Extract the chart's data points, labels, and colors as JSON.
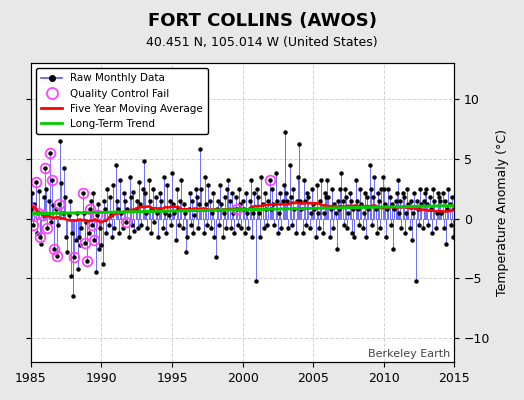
{
  "title": "FORT COLLINS (AWOS)",
  "subtitle": "40.451 N, 105.014 W (United States)",
  "ylabel": "Temperature Anomaly (°C)",
  "xlabel_credit": "Berkeley Earth",
  "xlim": [
    1985,
    2015
  ],
  "ylim": [
    -12,
    13
  ],
  "yticks": [
    -10,
    -5,
    0,
    5,
    10
  ],
  "xticks": [
    1985,
    1990,
    1995,
    2000,
    2005,
    2010,
    2015
  ],
  "bg_color": "#e8e8e8",
  "plot_bg_color": "#ffffff",
  "raw_line_color": "#5555ff",
  "raw_marker_color": "#000000",
  "qc_fail_color": "#ff44ff",
  "moving_avg_color": "#ff0000",
  "trend_color": "#00cc00",
  "start_year": 1985.0,
  "raw_data": [
    0.8,
    2.1,
    -0.5,
    1.2,
    3.1,
    -1.2,
    0.5,
    2.3,
    -1.5,
    -2.1,
    0.3,
    1.8,
    4.2,
    2.5,
    -0.8,
    1.5,
    5.5,
    -0.3,
    3.2,
    1.1,
    -2.5,
    0.8,
    -3.1,
    -0.5,
    1.2,
    6.5,
    3.0,
    0.5,
    4.2,
    1.8,
    -1.5,
    -2.8,
    0.3,
    1.5,
    -4.8,
    -1.2,
    -6.5,
    -3.2,
    -1.8,
    0.5,
    -4.2,
    -1.5,
    -2.2,
    -0.8,
    2.1,
    0.5,
    -2.0,
    -0.3,
    -3.5,
    -1.2,
    0.8,
    1.5,
    -0.5,
    2.1,
    -1.8,
    -4.5,
    0.3,
    1.2,
    -2.5,
    -0.8,
    -2.2,
    -3.8,
    1.5,
    0.8,
    -1.2,
    2.5,
    -0.5,
    1.8,
    0.3,
    -1.5,
    2.8,
    -0.8,
    4.5,
    1.5,
    0.8,
    -1.2,
    3.2,
    0.5,
    -0.8,
    2.1,
    1.5,
    -0.3,
    0.8,
    -1.5,
    3.5,
    1.8,
    -0.5,
    2.2,
    -1.0,
    0.8,
    1.5,
    -0.8,
    3.1,
    1.2,
    -0.5,
    2.5,
    4.8,
    2.1,
    0.5,
    -0.8,
    3.2,
    1.5,
    -1.2,
    0.8,
    2.5,
    -0.3,
    1.8,
    0.5,
    -1.5,
    0.8,
    2.1,
    1.5,
    -0.8,
    3.5,
    0.5,
    -1.2,
    2.8,
    0.3,
    1.5,
    -0.5,
    3.8,
    1.2,
    0.5,
    -1.8,
    2.5,
    0.8,
    -0.5,
    1.5,
    3.2,
    -0.8,
    1.2,
    0.5,
    -2.8,
    -1.5,
    0.8,
    2.1,
    -0.5,
    1.5,
    -1.2,
    0.3,
    2.5,
    1.8,
    -0.8,
    1.2,
    5.8,
    2.5,
    0.8,
    -1.2,
    3.5,
    1.2,
    -0.5,
    2.8,
    1.5,
    -0.8,
    0.5,
    2.1,
    -1.5,
    -3.2,
    0.8,
    1.5,
    -0.5,
    2.8,
    1.2,
    -1.5,
    0.5,
    1.8,
    -0.8,
    2.5,
    3.2,
    1.5,
    -0.8,
    2.1,
    0.5,
    -1.2,
    1.8,
    0.8,
    -0.5,
    2.5,
    1.2,
    -0.8,
    1.5,
    0.8,
    -1.2,
    2.1,
    0.5,
    -0.8,
    1.5,
    3.2,
    -1.5,
    0.5,
    2.1,
    -5.2,
    2.5,
    1.8,
    0.5,
    -1.5,
    3.5,
    1.2,
    -0.8,
    2.1,
    0.8,
    -0.5,
    1.5,
    3.2,
    0.8,
    2.5,
    1.2,
    -0.5,
    3.8,
    1.5,
    -1.2,
    0.5,
    2.1,
    -0.8,
    1.5,
    2.8,
    7.2,
    2.1,
    1.5,
    -0.8,
    4.5,
    1.8,
    -0.5,
    2.5,
    0.8,
    -1.2,
    1.5,
    3.5,
    6.2,
    1.5,
    0.8,
    -1.2,
    3.2,
    1.5,
    -0.5,
    2.1,
    1.8,
    -0.8,
    0.5,
    2.5,
    1.2,
    0.8,
    -1.5,
    2.8,
    0.5,
    -0.8,
    1.5,
    3.2,
    -1.2,
    0.5,
    2.1,
    1.8,
    3.2,
    1.8,
    -1.5,
    0.8,
    2.5,
    -0.8,
    1.2,
    0.5,
    -2.5,
    1.5,
    0.8,
    2.5,
    3.8,
    1.5,
    -0.5,
    2.5,
    1.8,
    -0.8,
    0.5,
    2.1,
    1.5,
    -1.2,
    0.8,
    -1.5,
    3.2,
    1.5,
    0.8,
    -0.5,
    2.5,
    1.2,
    -0.8,
    0.5,
    2.1,
    -1.5,
    1.8,
    0.8,
    4.5,
    2.5,
    -0.5,
    1.8,
    3.5,
    0.8,
    -1.2,
    2.1,
    1.5,
    -0.8,
    2.5,
    3.5,
    2.5,
    1.2,
    -1.5,
    0.8,
    2.5,
    1.8,
    -0.5,
    1.2,
    -2.5,
    0.8,
    1.5,
    2.1,
    3.2,
    0.5,
    1.5,
    -0.8,
    2.1,
    1.8,
    -1.2,
    0.5,
    2.5,
    1.2,
    -0.8,
    1.5,
    -1.8,
    0.5,
    2.1,
    -5.2,
    1.5,
    0.8,
    -0.5,
    2.5,
    1.2,
    -0.8,
    1.5,
    2.1,
    2.5,
    1.2,
    -0.5,
    1.8,
    0.8,
    -1.2,
    2.5,
    1.5,
    -0.8,
    0.5,
    2.1,
    1.8,
    1.5,
    0.5,
    2.1,
    -0.8,
    1.5,
    -2.1,
    0.8,
    2.5,
    1.2,
    -0.5,
    1.8,
    -1.5,
    0.8,
    -0.5,
    1.2,
    3.1,
    -1.2,
    0.5,
    2.3,
    -1.5,
    -2.1,
    0.3,
    1.8,
    0.5
  ],
  "qc_fail_indices": [
    0,
    2,
    4,
    6,
    8,
    10,
    12,
    14,
    16,
    18,
    20,
    22,
    24,
    37,
    44,
    46,
    48,
    50,
    52,
    54,
    56,
    81,
    175,
    203
  ]
}
